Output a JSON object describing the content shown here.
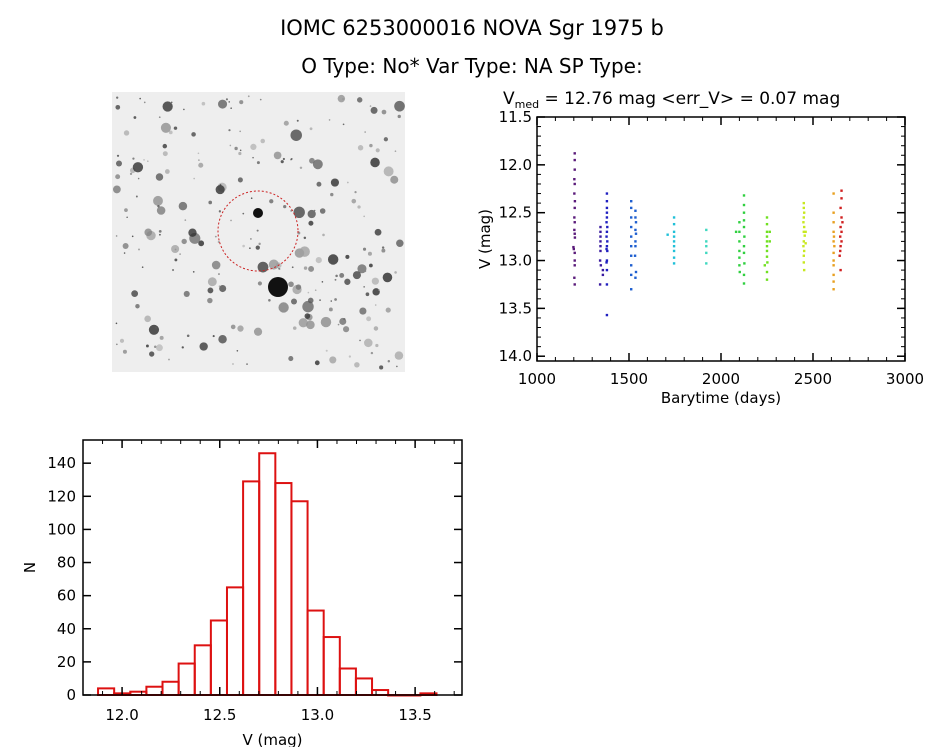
{
  "header": {
    "title": "IOMC 6253000016    NOVA Sgr 1975 b",
    "subtitle": "O Type: No*  Var Type: NA  SP Type:"
  },
  "image_panel": {
    "description_icon": "sky-finder-chart",
    "marker_color": "#cc2222"
  },
  "chart_data": [
    {
      "type": "scatter",
      "title_prefix": "V",
      "title_subscript": "med",
      "title_rest": " = 12.76 mag <err_V> = 0.07 mag",
      "xlabel": "Barytime (days)",
      "ylabel": "V (mag)",
      "xlim": [
        1000,
        3000
      ],
      "ylim": [
        14.05,
        11.5
      ],
      "y_reversed": true,
      "xticks": [
        1000,
        1500,
        2000,
        2500,
        3000
      ],
      "yticks": [
        11.5,
        12.0,
        12.5,
        13.0,
        13.5,
        14.0
      ],
      "xtick_labels": [
        "1000",
        "1500",
        "2000",
        "2500",
        "3000"
      ],
      "ytick_labels": [
        "11.5",
        "12.0",
        "12.5",
        "13.0",
        "13.5",
        "14.0"
      ],
      "grid": false,
      "groups": [
        {
          "color": "#5a1a7a",
          "points": [
            [
              1205,
              11.88
            ],
            [
              1205,
              11.95
            ],
            [
              1205,
              12.05
            ],
            [
              1203,
              12.15
            ],
            [
              1205,
              12.2
            ],
            [
              1203,
              12.3
            ],
            [
              1206,
              12.38
            ],
            [
              1205,
              12.45
            ],
            [
              1203,
              12.55
            ],
            [
              1205,
              12.6
            ],
            [
              1203,
              12.68
            ],
            [
              1205,
              12.72
            ],
            [
              1206,
              12.76
            ],
            [
              1198,
              12.86
            ],
            [
              1200,
              12.88
            ],
            [
              1205,
              12.92
            ],
            [
              1205,
              13.0
            ],
            [
              1205,
              13.05
            ],
            [
              1203,
              13.18
            ],
            [
              1205,
              13.25
            ]
          ]
        },
        {
          "color": "#3a1aa0",
          "points": [
            [
              1345,
              12.65
            ],
            [
              1345,
              12.7
            ],
            [
              1345,
              12.75
            ],
            [
              1345,
              12.8
            ],
            [
              1345,
              12.85
            ],
            [
              1345,
              12.9
            ],
            [
              1343,
              13.0
            ],
            [
              1347,
              13.05
            ],
            [
              1343,
              13.25
            ],
            [
              1358,
              13.1
            ],
            [
              1358,
              13.15
            ]
          ]
        },
        {
          "color": "#2020c0",
          "points": [
            [
              1380,
              12.3
            ],
            [
              1380,
              12.38
            ],
            [
              1380,
              12.45
            ],
            [
              1380,
              12.5
            ],
            [
              1380,
              12.55
            ],
            [
              1378,
              12.6
            ],
            [
              1382,
              12.65
            ],
            [
              1380,
              12.7
            ],
            [
              1378,
              12.75
            ],
            [
              1382,
              12.8
            ],
            [
              1380,
              12.85
            ],
            [
              1378,
              12.88
            ],
            [
              1382,
              12.9
            ],
            [
              1380,
              13.0
            ],
            [
              1378,
              13.02
            ],
            [
              1380,
              13.1
            ],
            [
              1380,
              13.25
            ],
            [
              1380,
              13.57
            ]
          ]
        },
        {
          "color": "#1f5fd0",
          "points": [
            [
              1512,
              12.38
            ],
            [
              1512,
              12.45
            ],
            [
              1512,
              12.55
            ],
            [
              1512,
              12.65
            ],
            [
              1512,
              12.75
            ],
            [
              1512,
              12.85
            ],
            [
              1512,
              12.95
            ],
            [
              1512,
              13.05
            ],
            [
              1512,
              13.15
            ],
            [
              1512,
              13.3
            ],
            [
              1535,
              12.48
            ],
            [
              1535,
              12.55
            ],
            [
              1538,
              12.6
            ],
            [
              1535,
              12.68
            ],
            [
              1538,
              12.72
            ],
            [
              1535,
              12.8
            ],
            [
              1535,
              12.85
            ],
            [
              1533,
              12.95
            ],
            [
              1538,
              13.12
            ],
            [
              1535,
              13.18
            ]
          ]
        },
        {
          "color": "#20c0d8",
          "points": [
            [
              1710,
              12.73
            ],
            [
              1745,
              12.55
            ],
            [
              1745,
              12.62
            ],
            [
              1745,
              12.7
            ],
            [
              1745,
              12.75
            ],
            [
              1745,
              12.8
            ],
            [
              1745,
              12.85
            ],
            [
              1745,
              12.9
            ],
            [
              1745,
              12.97
            ],
            [
              1745,
              13.03
            ]
          ]
        },
        {
          "color": "#40d8c0",
          "points": [
            [
              1920,
              12.68
            ],
            [
              1920,
              12.8
            ],
            [
              1920,
              12.85
            ],
            [
              1920,
              12.92
            ],
            [
              1920,
              13.03
            ]
          ]
        },
        {
          "color": "#30d040",
          "points": [
            [
              2082,
              12.7
            ],
            [
              2100,
              12.6
            ],
            [
              2100,
              12.7
            ],
            [
              2100,
              12.8
            ],
            [
              2100,
              12.9
            ],
            [
              2100,
              12.97
            ],
            [
              2100,
              13.05
            ],
            [
              2102,
              13.12
            ],
            [
              2125,
              12.32
            ],
            [
              2125,
              12.42
            ],
            [
              2125,
              12.5
            ],
            [
              2125,
              12.58
            ],
            [
              2125,
              12.65
            ],
            [
              2127,
              12.75
            ],
            [
              2125,
              12.85
            ],
            [
              2125,
              12.92
            ],
            [
              2127,
              13.03
            ],
            [
              2125,
              13.15
            ],
            [
              2125,
              13.24
            ]
          ]
        },
        {
          "color": "#70e020",
          "points": [
            [
              2238,
              13.05
            ],
            [
              2250,
              12.55
            ],
            [
              2250,
              12.62
            ],
            [
              2250,
              12.7
            ],
            [
              2250,
              12.75
            ],
            [
              2250,
              12.8
            ],
            [
              2250,
              12.85
            ],
            [
              2250,
              12.9
            ],
            [
              2250,
              12.96
            ],
            [
              2252,
              13.02
            ],
            [
              2250,
              13.12
            ],
            [
              2250,
              13.2
            ],
            [
              2265,
              12.7
            ],
            [
              2265,
              12.8
            ]
          ]
        },
        {
          "color": "#c8e820",
          "points": [
            [
              2450,
              12.4
            ],
            [
              2450,
              12.45
            ],
            [
              2452,
              12.5
            ],
            [
              2450,
              12.55
            ],
            [
              2448,
              12.6
            ],
            [
              2452,
              12.65
            ],
            [
              2450,
              12.7
            ],
            [
              2455,
              12.74
            ],
            [
              2450,
              12.8
            ],
            [
              2448,
              12.85
            ],
            [
              2452,
              12.9
            ],
            [
              2450,
              12.95
            ],
            [
              2450,
              13.02
            ],
            [
              2452,
              13.1
            ],
            [
              2460,
              12.7
            ],
            [
              2460,
              12.82
            ]
          ]
        },
        {
          "color": "#e8a020",
          "points": [
            [
              2612,
              12.3
            ],
            [
              2612,
              12.5
            ],
            [
              2612,
              12.6
            ],
            [
              2612,
              12.7
            ],
            [
              2614,
              12.75
            ],
            [
              2612,
              12.8
            ],
            [
              2616,
              12.85
            ],
            [
              2612,
              12.92
            ],
            [
              2612,
              13.0
            ],
            [
              2612,
              13.05
            ],
            [
              2612,
              13.15
            ],
            [
              2612,
              13.22
            ],
            [
              2612,
              13.3
            ]
          ]
        },
        {
          "color": "#d02020",
          "points": [
            [
              2655,
              12.27
            ],
            [
              2655,
              12.35
            ],
            [
              2650,
              12.45
            ],
            [
              2655,
              12.55
            ],
            [
              2660,
              12.6
            ],
            [
              2650,
              12.65
            ],
            [
              2655,
              12.7
            ],
            [
              2648,
              12.75
            ],
            [
              2655,
              12.8
            ],
            [
              2650,
              12.85
            ],
            [
              2648,
              12.9
            ],
            [
              2645,
              12.95
            ],
            [
              2650,
              13.1
            ]
          ]
        }
      ]
    },
    {
      "type": "bar",
      "subtype": "histogram",
      "xlabel": "V (mag)",
      "ylabel": "N",
      "xlim": [
        11.8,
        13.74
      ],
      "ylim": [
        0,
        154
      ],
      "xticks": [
        12.0,
        12.5,
        13.0,
        13.5
      ],
      "xtick_labels": [
        "12.0",
        "12.5",
        "13.0",
        "13.5"
      ],
      "yticks": [
        0,
        20,
        40,
        60,
        80,
        100,
        120,
        140
      ],
      "ytick_labels": [
        "0",
        "20",
        "40",
        "60",
        "80",
        "100",
        "120",
        "140"
      ],
      "bin_start": 11.877,
      "bin_width": 0.0825,
      "values": [
        4,
        1,
        2,
        5,
        8,
        19,
        30,
        45,
        65,
        129,
        146,
        128,
        117,
        51,
        35,
        16,
        10,
        3,
        0,
        0,
        1
      ],
      "color": "#dd1111",
      "grid": false
    }
  ]
}
